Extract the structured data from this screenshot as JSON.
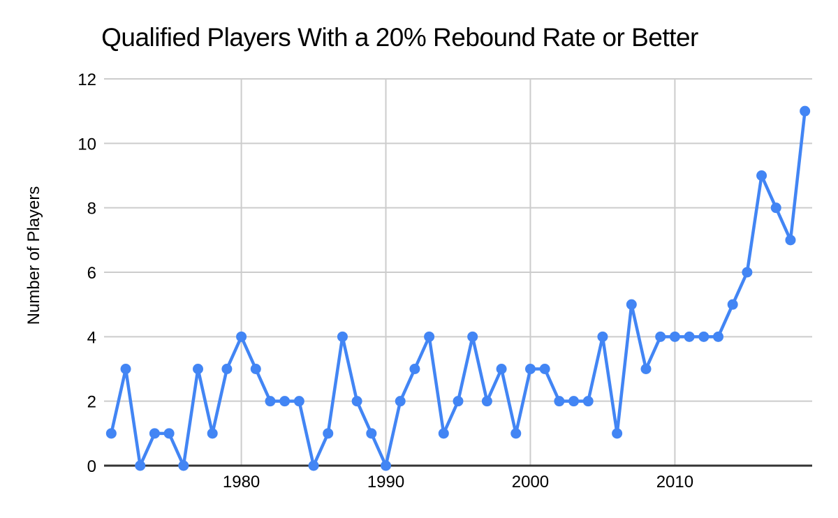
{
  "page": {
    "background_color": "#ffffff"
  },
  "chart_data": {
    "type": "line",
    "title": "Qualified Players With a 20% Rebound Rate or Better",
    "xlabel": "",
    "ylabel": "Number of Players",
    "x": [
      1971,
      1972,
      1973,
      1974,
      1975,
      1976,
      1977,
      1978,
      1979,
      1980,
      1981,
      1982,
      1983,
      1984,
      1985,
      1986,
      1987,
      1988,
      1989,
      1990,
      1991,
      1992,
      1993,
      1994,
      1995,
      1996,
      1997,
      1998,
      1999,
      2000,
      2001,
      2002,
      2003,
      2004,
      2005,
      2006,
      2007,
      2008,
      2009,
      2010,
      2011,
      2012,
      2013,
      2014,
      2015,
      2016,
      2017,
      2018,
      2019
    ],
    "values": [
      1,
      3,
      0,
      1,
      1,
      0,
      3,
      1,
      3,
      4,
      3,
      2,
      2,
      2,
      0,
      1,
      4,
      2,
      1,
      0,
      2,
      3,
      4,
      1,
      2,
      4,
      2,
      3,
      1,
      3,
      3,
      2,
      2,
      2,
      4,
      1,
      5,
      3,
      4,
      4,
      4,
      4,
      4,
      5,
      6,
      9,
      8,
      7,
      11
    ],
    "xticks": [
      1980,
      1990,
      2000,
      2010
    ],
    "yticks": [
      0,
      2,
      4,
      6,
      8,
      10,
      12
    ],
    "ylim": [
      0,
      12
    ],
    "grid": true,
    "legend": "none",
    "marker": "circle",
    "line_color": "#4285f4",
    "gridline_color": "#cccccc",
    "axis_color": "#333333",
    "text_color": "#000000"
  }
}
